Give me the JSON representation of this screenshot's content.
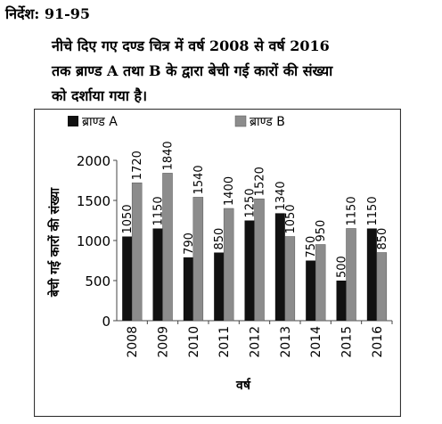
{
  "heading": "निर्देश: 91-95",
  "instructions": [
    "नीचे दिए गए दण्ड चित्र में वर्ष 2008 से वर्ष 2016",
    "तक ब्राण्ड A तथा B के द्वारा बेची गई कारों की संख्या",
    "को दर्शाया गया है।"
  ],
  "colors": {
    "brand_a": "#111111",
    "brand_b": "#8c8c8c",
    "frame": "#333333"
  },
  "chart_data": {
    "type": "bar",
    "categories": [
      "2008",
      "2009",
      "2010",
      "2011",
      "2012",
      "2013",
      "2014",
      "2015",
      "2016"
    ],
    "series": [
      {
        "name": "ब्राण्ड A",
        "values": [
          1050,
          1150,
          790,
          850,
          1250,
          1340,
          750,
          500,
          1150
        ]
      },
      {
        "name": "ब्राण्ड B",
        "values": [
          1720,
          1840,
          1540,
          1400,
          1520,
          1050,
          950,
          1150,
          850
        ]
      }
    ],
    "xlabel": "वर्ष",
    "ylabel": "बेची गई कारों की संख्या",
    "yticks": [
      "0",
      "500",
      "1000",
      "1500",
      "2000"
    ],
    "ylim": [
      0,
      2000
    ],
    "legend": "top",
    "grid": false
  }
}
